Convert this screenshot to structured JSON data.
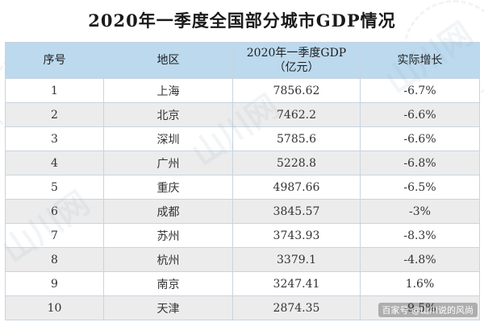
{
  "title": "2020年一季度全国部分城市GDP情况",
  "table": {
    "headers": {
      "rank": "序号",
      "city": "地区",
      "gdp_line1": "2020年一季度GDP",
      "gdp_line2": "（亿元）",
      "growth": "实际增长"
    },
    "rows": [
      {
        "rank": "1",
        "city": "上海",
        "gdp": "7856.62",
        "growth": "-6.7%"
      },
      {
        "rank": "2",
        "city": "北京",
        "gdp": "7462.2",
        "growth": "-6.6%"
      },
      {
        "rank": "3",
        "city": "深圳",
        "gdp": "5785.6",
        "growth": "-6.6%"
      },
      {
        "rank": "4",
        "city": "广州",
        "gdp": "5228.8",
        "growth": "-6.8%"
      },
      {
        "rank": "5",
        "city": "重庆",
        "gdp": "4987.66",
        "growth": "-6.5%"
      },
      {
        "rank": "6",
        "city": "成都",
        "gdp": "3845.57",
        "growth": "-3%"
      },
      {
        "rank": "7",
        "city": "苏州",
        "gdp": "3743.93",
        "growth": "-8.3%"
      },
      {
        "rank": "8",
        "city": "杭州",
        "gdp": "3379.1",
        "growth": "-4.8%"
      },
      {
        "rank": "9",
        "city": "南京",
        "gdp": "3247.41",
        "growth": "1.6%"
      },
      {
        "rank": "10",
        "city": "天津",
        "gdp": "2874.35",
        "growth": "-9.5%"
      }
    ]
  },
  "watermark_text": "山川网",
  "credit": "百家号 @山川说的风尚",
  "colors": {
    "header_bg": "#bcd9ee",
    "stripe_bg": "#ececec",
    "border": "#c8d4e0"
  }
}
